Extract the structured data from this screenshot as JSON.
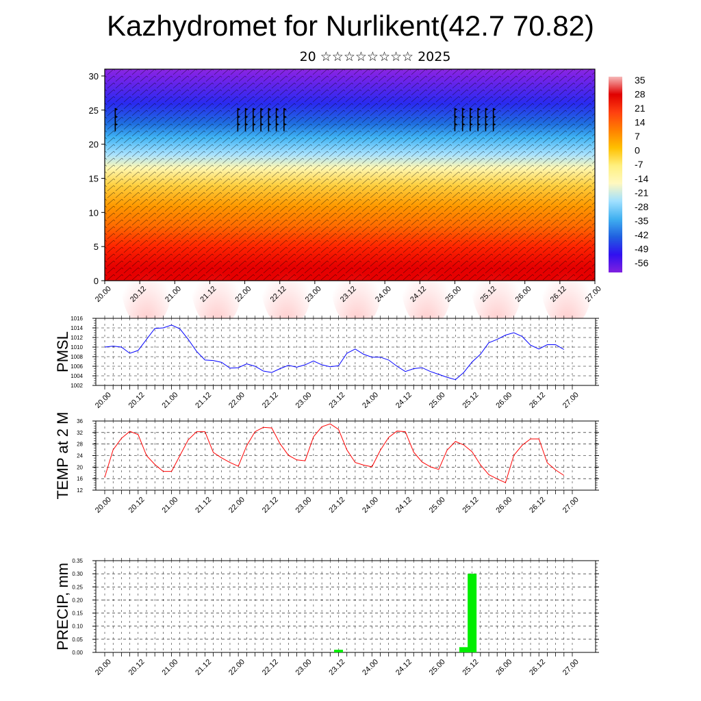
{
  "title": "Kazhydromet for Nurlikent(42.7 70.82)",
  "subtitle": "20 ☆☆☆☆☆☆☆☆ 2025",
  "chart_data": [
    {
      "type": "heatmap",
      "description_key": "cross-section",
      "yticks": [
        "0",
        "5",
        "10",
        "15",
        "20",
        "25",
        "30"
      ],
      "ylim": [
        0,
        31
      ],
      "xticks": [
        "20.00",
        "20.12",
        "21.00",
        "21.12",
        "22.00",
        "22.12",
        "23.00",
        "23.12",
        "24.00",
        "24.12",
        "25.00",
        "25.12",
        "26.00",
        "26.12",
        "27.00"
      ],
      "colorbar_labels": [
        "35",
        "28",
        "21",
        "14",
        "7",
        "0",
        "-7",
        "-14",
        "-21",
        "-28",
        "-35",
        "-42",
        "-49",
        "-56"
      ],
      "colors": [
        "#f6b8b8",
        "#e00000",
        "#ff4010",
        "#ff8000",
        "#ffc000",
        "#fff080",
        "#fff8c0",
        "#a0e0ff",
        "#40b0f0",
        "#2060e0",
        "#3010f0",
        "#8020e0"
      ]
    },
    {
      "type": "line",
      "ylabel": "PMSL",
      "ylim": [
        1002,
        1016
      ],
      "yticks": [
        "1002",
        "1004",
        "1006",
        "1008",
        "1010",
        "1012",
        "1014",
        "1016"
      ],
      "xticks": [
        "20.00",
        "20.12",
        "21.00",
        "21.12",
        "22.00",
        "22.12",
        "23.00",
        "23.12",
        "24.00",
        "24.12",
        "25.00",
        "25.12",
        "26.00",
        "26.12",
        "27.00"
      ],
      "line_color": "#0000ff",
      "x_hours": [
        0,
        3,
        6,
        9,
        12,
        15,
        18,
        21,
        24,
        27,
        30,
        33,
        36,
        39,
        42,
        45,
        48,
        51,
        54,
        57,
        60,
        63,
        66,
        69,
        72,
        75,
        78,
        81,
        84,
        87,
        90,
        93,
        96,
        99,
        102,
        105,
        108,
        111,
        114,
        117,
        120,
        123,
        126,
        129,
        132,
        135,
        138,
        141,
        144,
        147,
        150,
        153,
        156,
        159,
        162,
        165
      ],
      "values": [
        1010.0,
        1010.2,
        1010.0,
        1008.7,
        1009.3,
        1011.6,
        1013.9,
        1014.0,
        1014.6,
        1013.8,
        1011.6,
        1009.1,
        1007.3,
        1007.2,
        1006.8,
        1005.6,
        1005.7,
        1006.5,
        1006.0,
        1005.0,
        1004.7,
        1005.5,
        1006.2,
        1005.8,
        1006.3,
        1007.1,
        1006.3,
        1005.9,
        1006.1,
        1008.7,
        1009.6,
        1008.5,
        1007.9,
        1007.9,
        1007.3,
        1006.0,
        1004.9,
        1005.5,
        1005.7,
        1004.9,
        1004.3,
        1003.7,
        1003.2,
        1004.7,
        1006.9,
        1008.5,
        1010.9,
        1011.6,
        1012.5,
        1013.0,
        1012.2,
        1010.4,
        1009.6,
        1010.5,
        1010.5,
        1009.5
      ]
    },
    {
      "type": "line",
      "ylabel": "TEMP at 2 M",
      "ylim": [
        12,
        36
      ],
      "yticks": [
        "12",
        "16",
        "20",
        "24",
        "28",
        "32",
        "36"
      ],
      "xticks": [
        "20.00",
        "20.12",
        "21.00",
        "21.12",
        "22.00",
        "22.12",
        "23.00",
        "23.12",
        "24.00",
        "24.12",
        "25.00",
        "25.12",
        "26.00",
        "26.12",
        "27.00"
      ],
      "line_color": "#ff0000",
      "x_hours": [
        0,
        3,
        6,
        9,
        12,
        15,
        18,
        21,
        24,
        27,
        30,
        33,
        36,
        39,
        42,
        45,
        48,
        51,
        54,
        57,
        60,
        63,
        66,
        69,
        72,
        75,
        78,
        81,
        84,
        87,
        90,
        93,
        96,
        99,
        102,
        105,
        108,
        111,
        114,
        117,
        120,
        123,
        126,
        129,
        132,
        135,
        138,
        141,
        144,
        147,
        150,
        153,
        156,
        159,
        162,
        165
      ],
      "values": [
        16.5,
        26.0,
        30.0,
        32.4,
        31.3,
        24.0,
        20.9,
        18.5,
        18.5,
        24.0,
        29.5,
        32.3,
        32.3,
        25.1,
        23.2,
        21.6,
        20.3,
        27.4,
        32.3,
        33.8,
        33.6,
        28.1,
        24.1,
        22.5,
        22.2,
        30.5,
        34.0,
        35.0,
        33.1,
        26.0,
        21.6,
        20.7,
        20.1,
        25.8,
        30.3,
        32.5,
        32.3,
        25.2,
        21.8,
        20.1,
        19.2,
        25.9,
        28.9,
        27.7,
        25.3,
        20.8,
        17.4,
        15.9,
        14.6,
        24.1,
        27.6,
        29.8,
        29.8,
        21.5,
        19.0,
        17.1
      ]
    },
    {
      "type": "bar",
      "ylabel": "PRECIP, mm",
      "ylim": [
        0,
        0.35
      ],
      "yticks": [
        "0.00",
        "0.05",
        "0.10",
        "0.15",
        "0.20",
        "0.25",
        "0.30",
        "0.35"
      ],
      "xticks": [
        "20.00",
        "20.12",
        "21.00",
        "21.12",
        "22.00",
        "22.12",
        "23.00",
        "23.12",
        "24.00",
        "24.12",
        "25.00",
        "25.12",
        "26.00",
        "26.12",
        "27.00"
      ],
      "bar_color": "#00ee00",
      "x_hours": [
        84,
        129,
        132
      ],
      "values": [
        0.01,
        0.02,
        0.3
      ]
    }
  ]
}
